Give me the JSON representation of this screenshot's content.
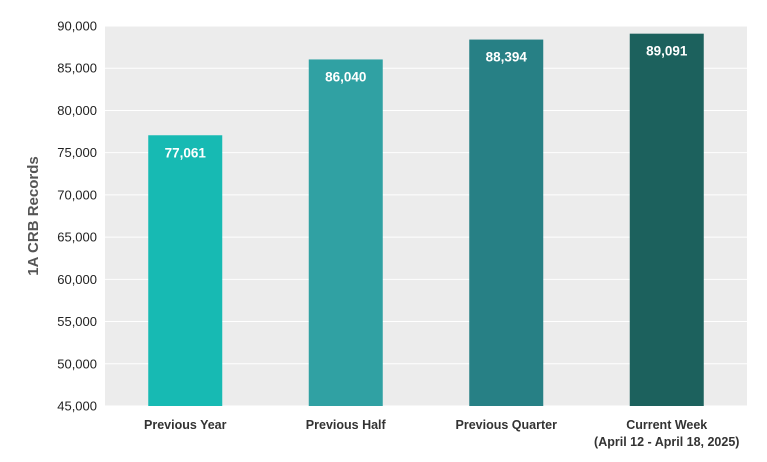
{
  "chart_data": {
    "type": "bar",
    "title": "",
    "xlabel": "",
    "ylabel": "1A CRB Records",
    "ylim": [
      45000,
      90000
    ],
    "ytick_step": 5000,
    "grid": true,
    "categories": [
      [
        "Previous Year"
      ],
      [
        "Previous Half"
      ],
      [
        "Previous Quarter"
      ],
      [
        "Current Week",
        "(April 12 - April 18, 2025)"
      ]
    ],
    "values": [
      77061,
      86040,
      88394,
      89091
    ],
    "value_labels": [
      "77,061",
      "86,040",
      "88,394",
      "89,091"
    ],
    "bar_colors": [
      "#17bab3",
      "#30a1a3",
      "#278085",
      "#1c615d"
    ],
    "plot_background": "#ececec",
    "gridline_color": "#ffffff"
  }
}
